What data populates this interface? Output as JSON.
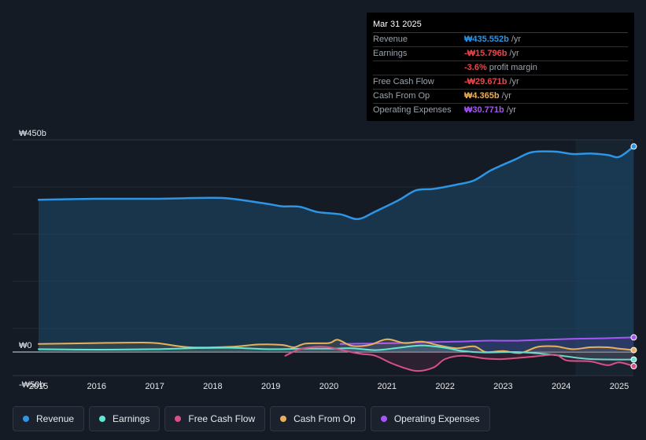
{
  "tooltip": {
    "date": "Mar 31 2025",
    "rows": [
      {
        "label": "Revenue",
        "value": "₩435.552b",
        "unit": "/yr",
        "color": "#2d95e3"
      },
      {
        "label": "Earnings",
        "value": "-₩15.796b",
        "unit": "/yr",
        "color": "#e5484d"
      },
      {
        "label": "",
        "value": "-3.6%",
        "unit": "profit margin",
        "color": "#e5484d"
      },
      {
        "label": "Free Cash Flow",
        "value": "-₩29.671b",
        "unit": "/yr",
        "color": "#e5484d"
      },
      {
        "label": "Cash From Op",
        "value": "₩4.365b",
        "unit": "/yr",
        "color": "#e8b05c"
      },
      {
        "label": "Operating Expenses",
        "value": "₩30.771b",
        "unit": "/yr",
        "color": "#a855f7"
      }
    ]
  },
  "legend": [
    {
      "label": "Revenue",
      "color": "#2d95e3"
    },
    {
      "label": "Earnings",
      "color": "#5ee8d4"
    },
    {
      "label": "Free Cash Flow",
      "color": "#d94f86"
    },
    {
      "label": "Cash From Op",
      "color": "#e8b05c"
    },
    {
      "label": "Operating Expenses",
      "color": "#a855f7"
    }
  ],
  "chart_data": {
    "type": "area",
    "y_unit": "₩ billions",
    "ylim": [
      -50,
      450
    ],
    "y_tick_labels": [
      {
        "value": 450,
        "label": "₩450b"
      },
      {
        "value": 0,
        "label": "₩0"
      },
      {
        "value": -50,
        "label": "-₩50b"
      }
    ],
    "x_ticks": [
      2015,
      2016,
      2017,
      2018,
      2019,
      2020,
      2021,
      2022,
      2023,
      2024,
      2025
    ],
    "xlim": [
      2014.55,
      2025.25
    ],
    "forecast_start": 2024.25,
    "series": [
      {
        "name": "Revenue",
        "color": "#2d95e3",
        "fill": true,
        "points": [
          [
            2015,
            323
          ],
          [
            2016,
            325
          ],
          [
            2017,
            325
          ],
          [
            2018,
            327
          ],
          [
            2018.4,
            324
          ],
          [
            2019,
            313
          ],
          [
            2019.2,
            309
          ],
          [
            2019.5,
            308
          ],
          [
            2019.8,
            297
          ],
          [
            2020.2,
            292
          ],
          [
            2020.5,
            282
          ],
          [
            2020.8,
            298
          ],
          [
            2021.2,
            322
          ],
          [
            2021.5,
            343
          ],
          [
            2021.8,
            346
          ],
          [
            2022.2,
            355
          ],
          [
            2022.5,
            364
          ],
          [
            2022.8,
            386
          ],
          [
            2023.2,
            408
          ],
          [
            2023.5,
            424
          ],
          [
            2023.9,
            425
          ],
          [
            2024.2,
            420
          ],
          [
            2024.5,
            421
          ],
          [
            2024.8,
            418
          ],
          [
            2025.0,
            414
          ],
          [
            2025.25,
            436
          ]
        ]
      },
      {
        "name": "Operating Expenses",
        "color": "#a855f7",
        "fill": false,
        "points": [
          [
            2020.2,
            17
          ],
          [
            2020.7,
            18
          ],
          [
            2021.2,
            19
          ],
          [
            2021.7,
            21
          ],
          [
            2022.2,
            22
          ],
          [
            2022.7,
            24
          ],
          [
            2023.2,
            24
          ],
          [
            2023.7,
            26
          ],
          [
            2024.2,
            28
          ],
          [
            2024.7,
            29
          ],
          [
            2025.25,
            31
          ]
        ]
      },
      {
        "name": "Cash From Op",
        "color": "#e8b05c",
        "fill": false,
        "points": [
          [
            2015,
            17
          ],
          [
            2016,
            19
          ],
          [
            2016.8,
            20
          ],
          [
            2017.1,
            18
          ],
          [
            2017.6,
            10
          ],
          [
            2018.3,
            11
          ],
          [
            2018.8,
            16
          ],
          [
            2019.2,
            15
          ],
          [
            2019.4,
            10
          ],
          [
            2019.6,
            18
          ],
          [
            2020.0,
            19
          ],
          [
            2020.15,
            26
          ],
          [
            2020.4,
            13
          ],
          [
            2020.7,
            15
          ],
          [
            2021.0,
            27
          ],
          [
            2021.3,
            19
          ],
          [
            2021.6,
            22
          ],
          [
            2021.9,
            14
          ],
          [
            2022.2,
            8
          ],
          [
            2022.5,
            12
          ],
          [
            2022.7,
            0
          ],
          [
            2023.0,
            2
          ],
          [
            2023.3,
            -2
          ],
          [
            2023.6,
            11
          ],
          [
            2023.9,
            12
          ],
          [
            2024.2,
            6
          ],
          [
            2024.5,
            10
          ],
          [
            2024.8,
            10
          ],
          [
            2025.0,
            7
          ],
          [
            2025.25,
            4
          ]
        ]
      },
      {
        "name": "Earnings",
        "color": "#5ee8d4",
        "fill": false,
        "points": [
          [
            2015,
            6
          ],
          [
            2016,
            5
          ],
          [
            2017,
            6
          ],
          [
            2017.6,
            8
          ],
          [
            2018.3,
            9
          ],
          [
            2019,
            6
          ],
          [
            2019.5,
            7
          ],
          [
            2020.0,
            7
          ],
          [
            2020.4,
            8
          ],
          [
            2020.8,
            4
          ],
          [
            2021.2,
            9
          ],
          [
            2021.6,
            14
          ],
          [
            2022.0,
            9
          ],
          [
            2022.3,
            2
          ],
          [
            2022.7,
            -1
          ],
          [
            2023.2,
            0
          ],
          [
            2023.6,
            -3
          ],
          [
            2024.0,
            -8
          ],
          [
            2024.5,
            -15
          ],
          [
            2025.25,
            -16
          ]
        ]
      },
      {
        "name": "Free Cash Flow",
        "color": "#d94f86",
        "fill": false,
        "points": [
          [
            2019.25,
            -8
          ],
          [
            2019.5,
            6
          ],
          [
            2019.8,
            11
          ],
          [
            2020.0,
            10
          ],
          [
            2020.3,
            2
          ],
          [
            2020.55,
            -4
          ],
          [
            2020.8,
            -8
          ],
          [
            2021.1,
            -25
          ],
          [
            2021.5,
            -40
          ],
          [
            2021.8,
            -33
          ],
          [
            2022.0,
            -15
          ],
          [
            2022.3,
            -8
          ],
          [
            2022.7,
            -14
          ],
          [
            2023.0,
            -15
          ],
          [
            2023.5,
            -10
          ],
          [
            2023.9,
            -6
          ],
          [
            2024.1,
            -18
          ],
          [
            2024.5,
            -20
          ],
          [
            2024.8,
            -28
          ],
          [
            2025.0,
            -22
          ],
          [
            2025.25,
            -30
          ]
        ]
      }
    ]
  }
}
